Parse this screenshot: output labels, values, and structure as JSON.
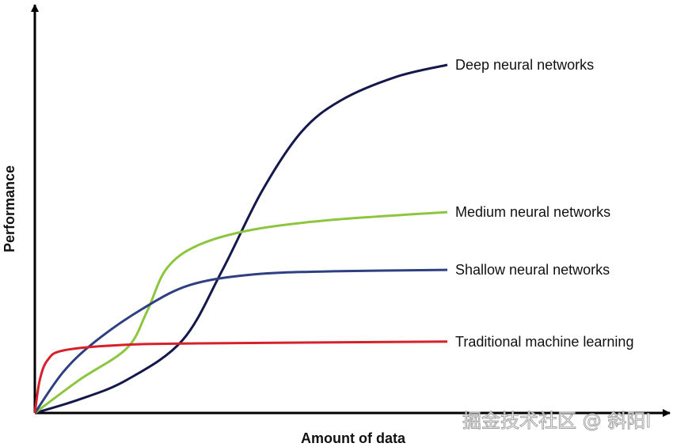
{
  "chart_data": {
    "type": "line",
    "title": "",
    "xlabel": "Amount of data",
    "ylabel": "Performance",
    "grid": false,
    "axis_ticks": false,
    "xlim": [
      0,
      100
    ],
    "ylim": [
      0,
      100
    ],
    "legend": "inline labels at line ends",
    "series": [
      {
        "name": "Deep neural networks",
        "color": "#15184a",
        "x": [
          0,
          10.8,
          22.3,
          35.8,
          45.4,
          55,
          64.6,
          74.2,
          87.7,
          100
        ],
        "y": [
          0,
          3.9,
          9.5,
          20.9,
          40.9,
          63.6,
          80.7,
          89.8,
          96.6,
          100
        ]
      },
      {
        "name": "Medium neural networks",
        "color": "#8cc63f",
        "x": [
          0,
          10.8,
          22.3,
          27.1,
          31.9,
          39.6,
          53,
          72.3,
          100
        ],
        "y": [
          0,
          9.5,
          18.6,
          28.9,
          41.4,
          48.2,
          52.7,
          55.5,
          57.7
        ]
      },
      {
        "name": "Shallow neural networks",
        "color": "#2e3f82",
        "x": [
          0,
          6.9,
          14.6,
          26.2,
          37.7,
          53,
          72.3,
          100
        ],
        "y": [
          0,
          11.8,
          20.5,
          30,
          36.8,
          39.8,
          40.7,
          41.1
        ]
      },
      {
        "name": "Traditional machine learning",
        "color": "#d6202a",
        "x": [
          0,
          1.2,
          3.1,
          6.9,
          20.4,
          39.6,
          100
        ],
        "y": [
          0,
          9.5,
          15.2,
          17.95,
          19.5,
          20,
          20.5
        ]
      }
    ]
  },
  "watermark": "掘金技术社区 @ 斜阳I"
}
